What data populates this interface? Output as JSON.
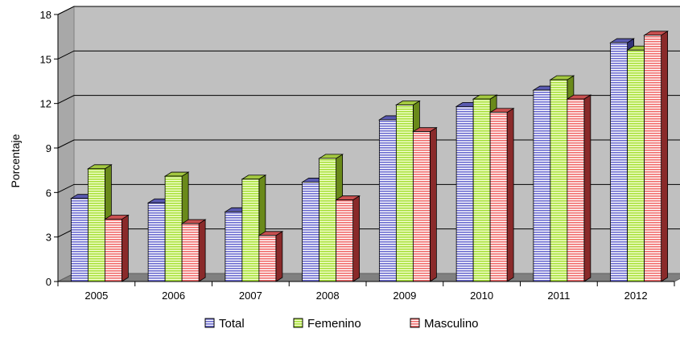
{
  "chart_data": {
    "type": "bar",
    "title": "",
    "xlabel": "",
    "ylabel": "Porcentaje",
    "ylim": [
      0,
      18
    ],
    "yticks": [
      0,
      3,
      6,
      9,
      12,
      15,
      18
    ],
    "grid": true,
    "legend_position": "bottom",
    "categories": [
      "2005",
      "2006",
      "2007",
      "2008",
      "2009",
      "2010",
      "2011",
      "2012"
    ],
    "series": [
      {
        "name": "Total",
        "color": "#8c8cd8",
        "values": [
          5.6,
          5.3,
          4.7,
          6.7,
          10.9,
          11.8,
          12.9,
          16.1
        ]
      },
      {
        "name": "Femenino",
        "color": "#ccff66",
        "values": [
          7.6,
          7.1,
          6.9,
          8.3,
          11.9,
          12.3,
          13.6,
          15.6
        ]
      },
      {
        "name": "Masculino",
        "color": "#ff8c8c",
        "values": [
          4.2,
          3.9,
          3.1,
          5.5,
          10.1,
          11.4,
          12.3,
          16.6
        ]
      }
    ],
    "colors": {
      "plot_back": "#c0c0c0",
      "floor": "#808080",
      "gridline": "#000000"
    }
  }
}
